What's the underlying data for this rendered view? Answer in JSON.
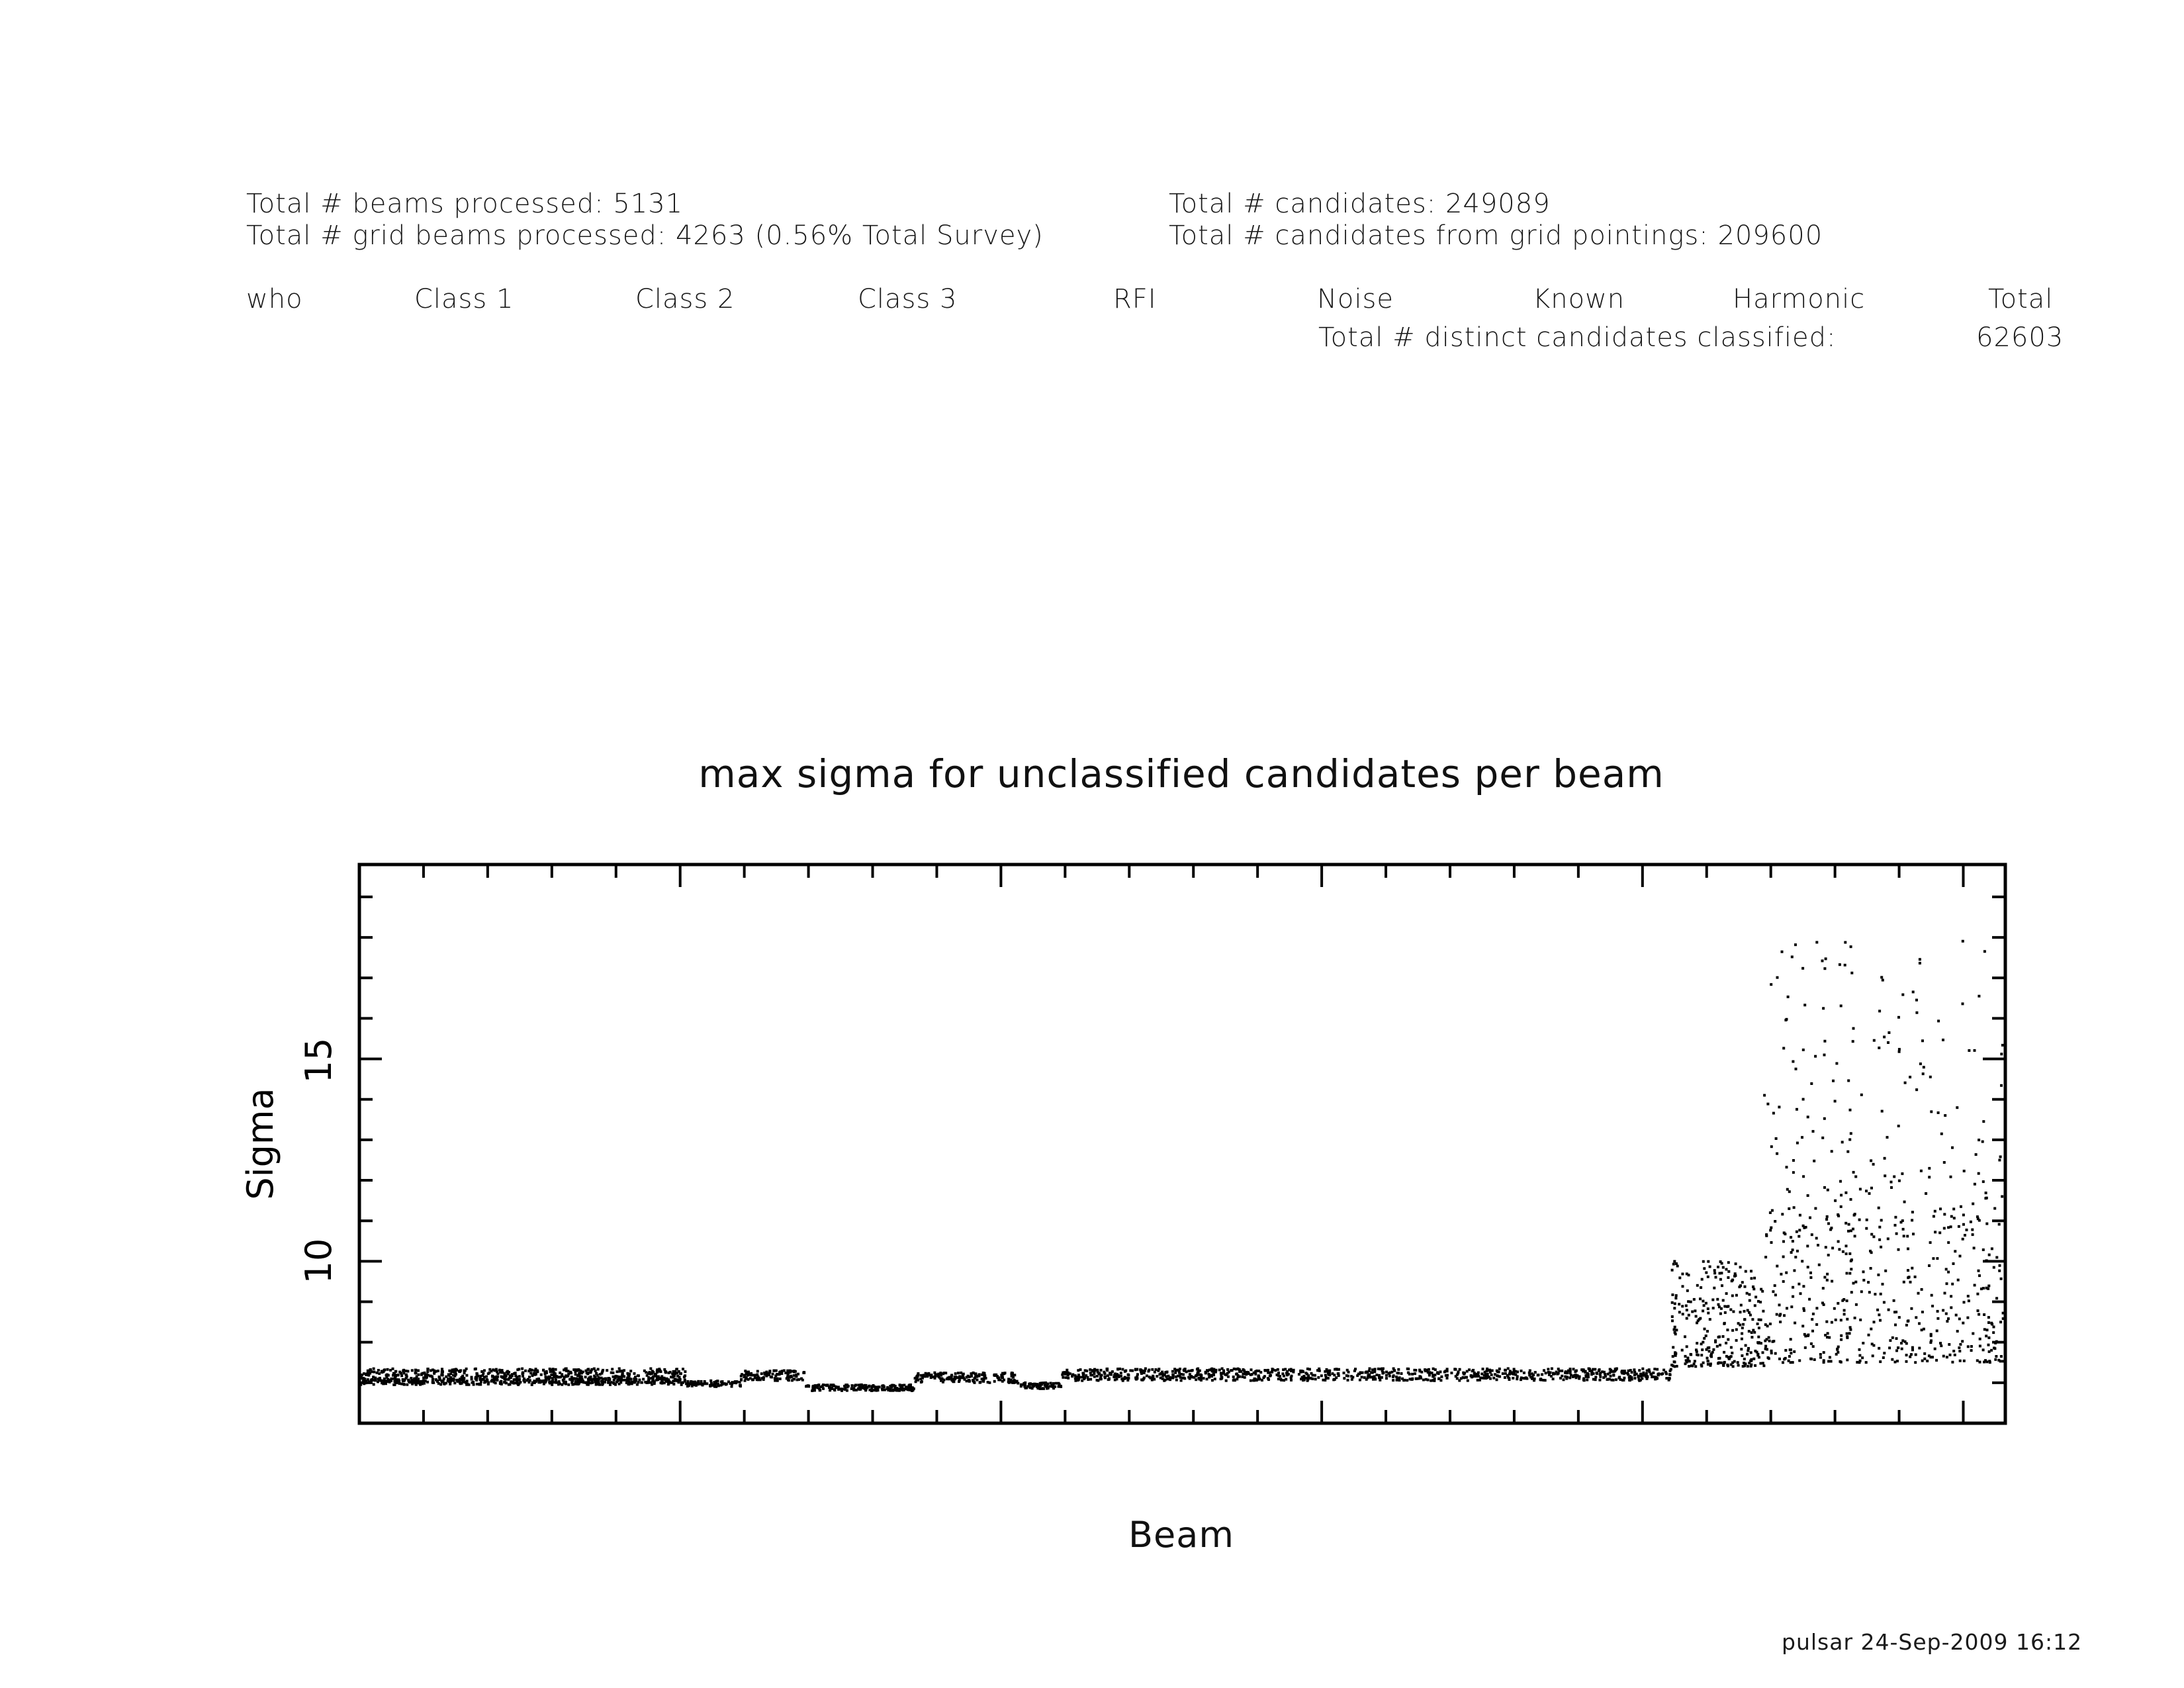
{
  "header": {
    "beams_processed": "Total # beams processed: 5131",
    "grid_beams_processed": "Total # grid beams processed: 4263 (0.56% Total Survey)",
    "candidates": "Total # candidates: 249089",
    "grid_candidates": "Total # candidates from grid pointings: 209600"
  },
  "classification_table": {
    "columns": [
      "who",
      "Class 1",
      "Class 2",
      "Class 3",
      "RFI",
      "Noise",
      "Known",
      "Harmonic",
      "Total"
    ],
    "distinct_label": "Total # distinct candidates classified:",
    "distinct_value": "62603"
  },
  "footer": {
    "stamp": "pulsar 24-Sep-2009 16:12"
  },
  "colors": {
    "ink": "#000000",
    "background": "#ffffff"
  },
  "chart_data": {
    "type": "scatter",
    "title": "max sigma for unclassified candidates per beam",
    "xlabel": "Beam",
    "ylabel": "Sigma",
    "xlim": [
      0,
      5131
    ],
    "ylim": [
      6,
      19.8
    ],
    "y_ticks": [
      10,
      15
    ],
    "x_tick_labels_shown": false,
    "grid": false,
    "legend": "none",
    "series": [
      {
        "values_description_points": true,
        "segments": [
          {
            "x_range": [
              0,
              1020
            ],
            "y_band": [
              7.0,
              7.35
            ],
            "count": 600
          },
          {
            "x_range": [
              0,
              1020
            ],
            "y_band": [
              6.95,
              7.1
            ],
            "count": 300
          },
          {
            "x_range": [
              1020,
              1190
            ],
            "y_band": [
              6.9,
              7.05
            ],
            "count": 80
          },
          {
            "x_range": [
              1190,
              1390
            ],
            "y_band": [
              7.05,
              7.3
            ],
            "count": 110
          },
          {
            "x_range": [
              1390,
              1730
            ],
            "y_band": [
              6.8,
              6.95
            ],
            "count": 180
          },
          {
            "x_range": [
              1730,
              2050
            ],
            "y_band": [
              7.0,
              7.25
            ],
            "count": 170
          },
          {
            "x_range": [
              2050,
              2190
            ],
            "y_band": [
              6.85,
              7.0
            ],
            "count": 70
          },
          {
            "x_range": [
              2190,
              4090
            ],
            "y_band": [
              7.05,
              7.35
            ],
            "count": 900
          },
          {
            "x_range": [
              4090,
              4380
            ],
            "y_band": [
              7.4,
              10.0
            ],
            "count": 280
          },
          {
            "x_range": [
              4380,
              5131
            ],
            "y_band": [
              7.5,
              11.0
            ],
            "count": 420
          },
          {
            "x_range": [
              4380,
              5131
            ],
            "y_band": [
              11.0,
              18.0
            ],
            "count": 190
          }
        ]
      }
    ]
  }
}
